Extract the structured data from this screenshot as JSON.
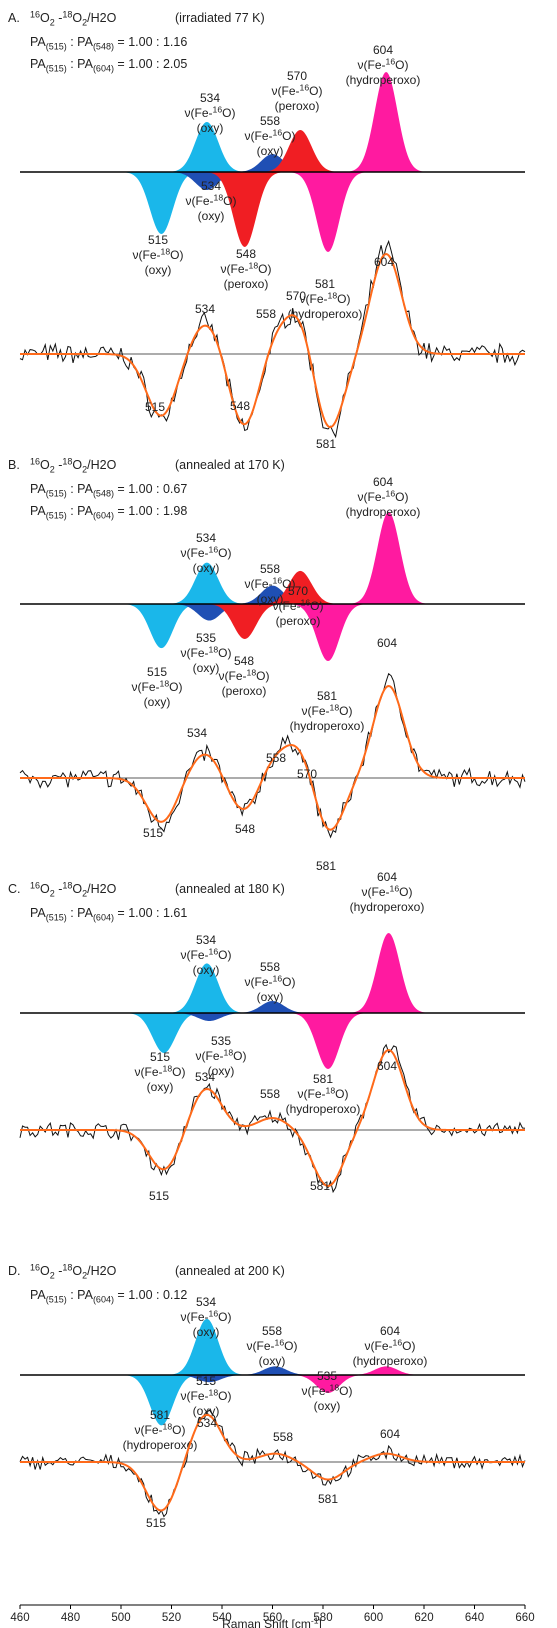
{
  "chart_data": [
    {
      "type": "area",
      "panel": "A",
      "header": {
        "label": "A.",
        "species": "16O2 -18O2/H2O",
        "condition": "(irradiated 77 K)"
      },
      "ratios": [
        {
          "left": "PA(515)",
          "right": "PA(548)",
          "text": "1.00 : 1.16"
        },
        {
          "left": "PA(515)",
          "right": "PA(604)",
          "text": "1.00 : 2.05"
        }
      ],
      "components": [
        {
          "center": 534,
          "sign": 1,
          "amp": 0.5,
          "width": 4.5,
          "color": "#1ab7ea",
          "labels": [
            "534",
            "ν(Fe-16O)",
            "(oxy)"
          ]
        },
        {
          "center": 560,
          "sign": 1,
          "amp": 0.18,
          "width": 4.5,
          "color": "#1f4fb4",
          "labels": [
            "558",
            "ν(Fe-16O)",
            "(oxy)"
          ]
        },
        {
          "center": 571,
          "sign": 1,
          "amp": 0.42,
          "width": 4.5,
          "color": "#f01e23",
          "labels": [
            "570",
            "ν(Fe-16O)",
            "(peroxo)"
          ]
        },
        {
          "center": 605,
          "sign": 1,
          "amp": 1.0,
          "width": 4.5,
          "color": "#ff1aa0",
          "labels": [
            "604",
            "ν(Fe-16O)",
            "(hydroperoxo)"
          ]
        },
        {
          "center": 516,
          "sign": -1,
          "amp": 0.62,
          "width": 4.5,
          "color": "#1ab7ea",
          "labels": [
            "515",
            "ν(Fe-18O)",
            "(oxy)"
          ]
        },
        {
          "center": 534,
          "sign": -1,
          "amp": 0.18,
          "width": 4.5,
          "color": "#1f4fb4",
          "labels": [
            "534",
            "ν(Fe-18O)",
            "(oxy)"
          ]
        },
        {
          "center": 549,
          "sign": -1,
          "amp": 0.75,
          "width": 4.5,
          "color": "#f01e23",
          "labels": [
            "548",
            "ν(Fe-18O)",
            "(peroxo)"
          ]
        },
        {
          "center": 582,
          "sign": -1,
          "amp": 0.8,
          "width": 4.5,
          "color": "#ff1aa0",
          "labels": [
            "581",
            "ν(Fe-18O)",
            "(hydroperoxo)"
          ]
        }
      ],
      "difference_peak_labels": [
        "534",
        "558",
        "570",
        "604",
        "515",
        "548",
        "581"
      ]
    },
    {
      "type": "area",
      "panel": "B",
      "header": {
        "label": "B.",
        "species": "16O2 -18O2/H2O",
        "condition": "(annealed at 170 K)"
      },
      "ratios": [
        {
          "left": "PA(515)",
          "right": "PA(548)",
          "text": "1.00 : 0.67"
        },
        {
          "left": "PA(515)",
          "right": "PA(604)",
          "text": "1.00 : 1.98"
        }
      ],
      "components": [
        {
          "center": 534,
          "sign": 1,
          "amp": 0.45,
          "width": 4.5,
          "color": "#1ab7ea",
          "labels": [
            "534",
            "ν(Fe-16O)",
            "(oxy)"
          ]
        },
        {
          "center": 560,
          "sign": 1,
          "amp": 0.2,
          "width": 4.5,
          "color": "#1f4fb4",
          "labels": [
            "558",
            "ν(Fe-16O)",
            "(oxy)"
          ]
        },
        {
          "center": 571,
          "sign": 1,
          "amp": 0.36,
          "width": 4.5,
          "color": "#f01e23",
          "labels": [
            "570",
            "ν(Fe-16O)",
            "(peroxo)"
          ]
        },
        {
          "center": 606,
          "sign": 1,
          "amp": 1.0,
          "width": 4.5,
          "color": "#ff1aa0",
          "labels": [
            "604",
            "ν(Fe-16O)",
            "(hydroperoxo)"
          ]
        },
        {
          "center": 516,
          "sign": -1,
          "amp": 0.48,
          "width": 4.5,
          "color": "#1ab7ea",
          "labels": [
            "515",
            "ν(Fe-18O)",
            "(oxy)"
          ]
        },
        {
          "center": 535,
          "sign": -1,
          "amp": 0.18,
          "width": 4.5,
          "color": "#1f4fb4",
          "labels": [
            "535",
            "ν(Fe-18O)",
            "(oxy)"
          ]
        },
        {
          "center": 549,
          "sign": -1,
          "amp": 0.38,
          "width": 4.5,
          "color": "#f01e23",
          "labels": [
            "548",
            "ν(Fe-18O)",
            "(peroxo)"
          ]
        },
        {
          "center": 582,
          "sign": -1,
          "amp": 0.62,
          "width": 4.5,
          "color": "#ff1aa0",
          "labels": [
            "581",
            "ν(Fe-18O)",
            "(hydroperoxo)"
          ]
        }
      ],
      "difference_peak_labels": [
        "534",
        "558",
        "570",
        "604",
        "515",
        "548",
        "581"
      ]
    },
    {
      "type": "area",
      "panel": "C",
      "header": {
        "label": "C.",
        "species": "16O2 -18O2/H2O",
        "condition": "(annealed at 180 K)"
      },
      "ratios": [
        {
          "left": "PA(515)",
          "right": "PA(604)",
          "text": "1.00 : 1.61"
        }
      ],
      "components": [
        {
          "center": 534,
          "sign": 1,
          "amp": 0.62,
          "width": 4.5,
          "color": "#1ab7ea",
          "labels": [
            "534",
            "ν(Fe-16O)",
            "(oxy)"
          ]
        },
        {
          "center": 560,
          "sign": 1,
          "amp": 0.15,
          "width": 4.5,
          "color": "#1f4fb4",
          "labels": [
            "558",
            "ν(Fe-16O)",
            "(oxy)"
          ]
        },
        {
          "center": 606,
          "sign": 1,
          "amp": 1.0,
          "width": 4.5,
          "color": "#ff1aa0",
          "labels": [
            "604",
            "ν(Fe-16O)",
            "(hydroperoxo)"
          ]
        },
        {
          "center": 517,
          "sign": -1,
          "amp": 0.5,
          "width": 4.5,
          "color": "#1ab7ea",
          "labels": [
            "515",
            "ν(Fe-18O)",
            "(oxy)"
          ]
        },
        {
          "center": 535,
          "sign": -1,
          "amp": 0.1,
          "width": 4.5,
          "color": "#1f4fb4",
          "labels": [
            "535",
            "ν(Fe-18O)",
            "(oxy)"
          ]
        },
        {
          "center": 582,
          "sign": -1,
          "amp": 0.7,
          "width": 4.5,
          "color": "#ff1aa0",
          "labels": [
            "581",
            "ν(Fe-18O)",
            "(hydroperoxo)"
          ]
        }
      ],
      "difference_peak_labels": [
        "534",
        "558",
        "604",
        "515",
        "581"
      ]
    },
    {
      "type": "area",
      "panel": "D",
      "header": {
        "label": "D.",
        "species": "16O2 -18O2/H2O",
        "condition": "(annealed at 200 K)"
      },
      "ratios": [
        {
          "left": "PA(515)",
          "right": "PA(604)",
          "text": "1.00 : 0.12"
        }
      ],
      "components": [
        {
          "center": 534,
          "sign": 1,
          "amp": 0.78,
          "width": 4.5,
          "color": "#1ab7ea",
          "labels": [
            "534",
            "ν(Fe-16O)",
            "(oxy)"
          ]
        },
        {
          "center": 561,
          "sign": 1,
          "amp": 0.12,
          "width": 4.5,
          "color": "#1f4fb4",
          "labels": [
            "558",
            "ν(Fe-16O)",
            "(oxy)"
          ]
        },
        {
          "center": 605,
          "sign": 1,
          "amp": 0.12,
          "width": 4.5,
          "color": "#ff1aa0",
          "labels": [
            "604",
            "ν(Fe-16O)",
            "(hydroperoxo)"
          ]
        },
        {
          "center": 516,
          "sign": -1,
          "amp": 0.7,
          "width": 4.5,
          "color": "#1ab7ea",
          "labels": [
            "515",
            "ν(Fe-18O)",
            "(oxy)"
          ]
        },
        {
          "center": 535,
          "sign": -1,
          "amp": 0.1,
          "width": 4.5,
          "color": "#1f4fb4",
          "labels": [
            "535",
            "ν(Fe-18O)",
            "(oxy)"
          ]
        },
        {
          "center": 582,
          "sign": -1,
          "amp": 0.25,
          "width": 4.5,
          "color": "#ff1aa0",
          "labels": [
            "581",
            "ν(Fe-18O)",
            "(hydroperoxo)"
          ]
        }
      ],
      "difference_peak_labels": [
        "534",
        "558",
        "604",
        "515",
        "581"
      ]
    }
  ],
  "x_axis": {
    "label": "Raman Shift [cm-1]",
    "range": [
      460,
      660
    ],
    "ticks": [
      460,
      480,
      500,
      520,
      540,
      560,
      580,
      600,
      620,
      640,
      660
    ]
  },
  "colors": {
    "oxy_16": "#1ab7ea",
    "oxy_minor": "#1f4fb4",
    "peroxo": "#f01e23",
    "hydroperoxo": "#ff1aa0",
    "experimental": "#111111",
    "fit": "#ff6a1a"
  }
}
